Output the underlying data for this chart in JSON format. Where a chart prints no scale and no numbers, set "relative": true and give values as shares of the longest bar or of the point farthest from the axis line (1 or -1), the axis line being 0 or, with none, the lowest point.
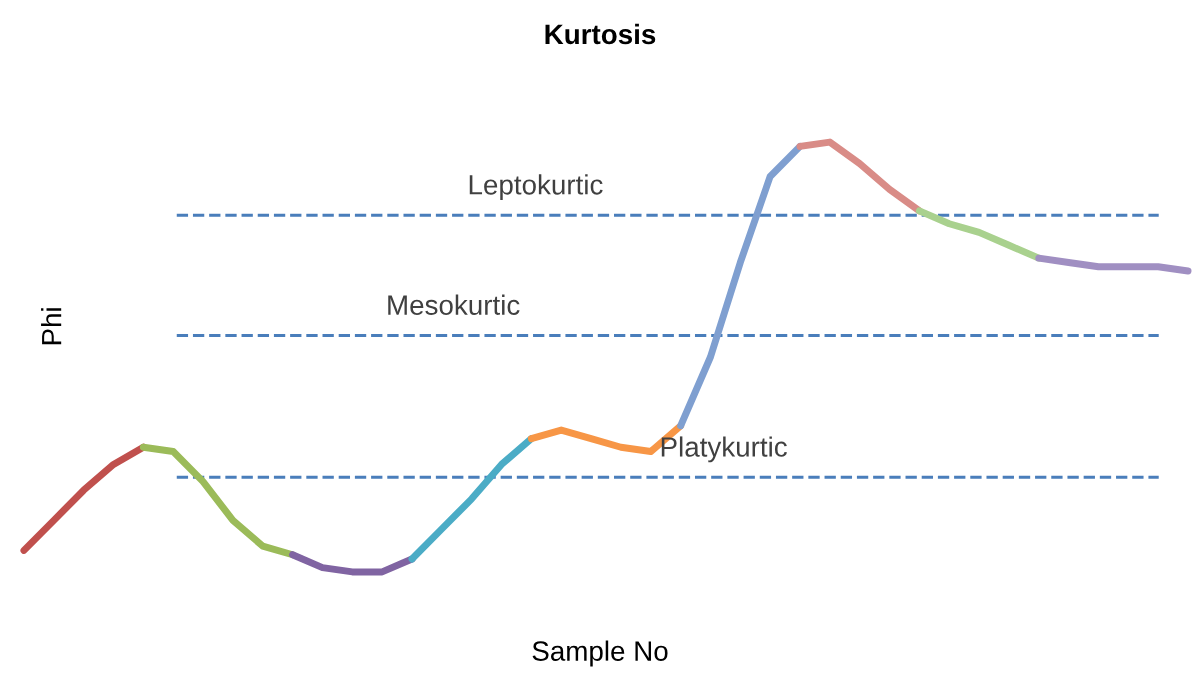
{
  "chart_data": {
    "type": "line",
    "title": "Kurtosis",
    "xlabel": "Sample No",
    "ylabel": "Phi",
    "relative": true,
    "marker": "none",
    "line_style": "solid",
    "categories": [
      null,
      null,
      null,
      null,
      null,
      null,
      null,
      null,
      null,
      null,
      null,
      null,
      null,
      null,
      null,
      null,
      null,
      null,
      null,
      null,
      null,
      null,
      null,
      null,
      null,
      null,
      null,
      null,
      null,
      null,
      null,
      null,
      null,
      null,
      null,
      null,
      null,
      null,
      null,
      null
    ],
    "series": [
      {
        "color": "#c0504d",
        "values": [
          0.05,
          0.12,
          0.19,
          0.25,
          0.29,
          null,
          null,
          null,
          null,
          null,
          null,
          null,
          null,
          null,
          null,
          null,
          null,
          null,
          null,
          null,
          null,
          null,
          null,
          null,
          null,
          null,
          null,
          null,
          null,
          null,
          null,
          null,
          null,
          null,
          null,
          null,
          null,
          null,
          null,
          null
        ]
      },
      {
        "color": "#9bbb59",
        "values": [
          null,
          null,
          null,
          null,
          0.29,
          0.28,
          0.21,
          0.12,
          0.06,
          0.04,
          null,
          null,
          null,
          null,
          null,
          null,
          null,
          null,
          null,
          null,
          null,
          null,
          null,
          null,
          null,
          null,
          null,
          null,
          null,
          null,
          null,
          null,
          null,
          null,
          null,
          null,
          null,
          null,
          null,
          null
        ]
      },
      {
        "color": "#8064a2",
        "values": [
          null,
          null,
          null,
          null,
          null,
          null,
          null,
          null,
          null,
          0.04,
          0.01,
          0,
          0,
          0.03,
          null,
          null,
          null,
          null,
          null,
          null,
          null,
          null,
          null,
          null,
          null,
          null,
          null,
          null,
          null,
          null,
          null,
          null,
          null,
          null,
          null,
          null,
          null,
          null,
          null,
          null
        ]
      },
      {
        "color": "#4bacc6",
        "values": [
          null,
          null,
          null,
          null,
          null,
          null,
          null,
          null,
          null,
          null,
          null,
          null,
          null,
          0.03,
          0.1,
          0.17,
          0.25,
          0.31,
          null,
          null,
          null,
          null,
          null,
          null,
          null,
          null,
          null,
          null,
          null,
          null,
          null,
          null,
          null,
          null,
          null,
          null,
          null,
          null,
          null,
          null
        ]
      },
      {
        "color": "#f79646",
        "values": [
          null,
          null,
          null,
          null,
          null,
          null,
          null,
          null,
          null,
          null,
          null,
          null,
          null,
          null,
          null,
          null,
          null,
          0.31,
          0.33,
          0.31,
          0.29,
          0.28,
          0.34,
          null,
          null,
          null,
          null,
          null,
          null,
          null,
          null,
          null,
          null,
          null,
          null,
          null,
          null,
          null,
          null,
          null
        ]
      },
      {
        "color": "#7f9fd0",
        "values": [
          null,
          null,
          null,
          null,
          null,
          null,
          null,
          null,
          null,
          null,
          null,
          null,
          null,
          null,
          null,
          null,
          null,
          null,
          null,
          null,
          null,
          null,
          0.34,
          0.5,
          0.72,
          0.92,
          0.99,
          null,
          null,
          null,
          null,
          null,
          null,
          null,
          null,
          null,
          null,
          null,
          null,
          null
        ]
      },
      {
        "color": "#d98c87",
        "values": [
          null,
          null,
          null,
          null,
          null,
          null,
          null,
          null,
          null,
          null,
          null,
          null,
          null,
          null,
          null,
          null,
          null,
          null,
          null,
          null,
          null,
          null,
          null,
          null,
          null,
          null,
          0.99,
          1,
          0.95,
          0.89,
          0.84,
          null,
          null,
          null,
          null,
          null,
          null,
          null,
          null,
          null
        ]
      },
      {
        "color": "#a9d18e",
        "values": [
          null,
          null,
          null,
          null,
          null,
          null,
          null,
          null,
          null,
          null,
          null,
          null,
          null,
          null,
          null,
          null,
          null,
          null,
          null,
          null,
          null,
          null,
          null,
          null,
          null,
          null,
          null,
          null,
          null,
          null,
          0.84,
          0.81,
          0.79,
          0.76,
          0.73,
          null,
          null,
          null,
          null,
          null
        ]
      },
      {
        "color": "#a08fc2",
        "values": [
          null,
          null,
          null,
          null,
          null,
          null,
          null,
          null,
          null,
          null,
          null,
          null,
          null,
          null,
          null,
          null,
          null,
          null,
          null,
          null,
          null,
          null,
          null,
          null,
          null,
          null,
          null,
          null,
          null,
          null,
          null,
          null,
          null,
          null,
          0.73,
          0.72,
          0.71,
          0.71,
          0.71,
          0.7
        ]
      }
    ],
    "ref_lines": [
      {
        "axis": "y",
        "value": 0.83,
        "label": "Leptokurtic",
        "color": "#4a7ebb",
        "line_style": "dashed"
      },
      {
        "axis": "y",
        "value": 0.55,
        "label": "Mesokurtic",
        "color": "#4a7ebb",
        "line_style": "dashed"
      },
      {
        "axis": "y",
        "value": 0.22,
        "label": "Platykurtic",
        "color": "#4a7ebb",
        "line_style": "dashed"
      }
    ]
  }
}
